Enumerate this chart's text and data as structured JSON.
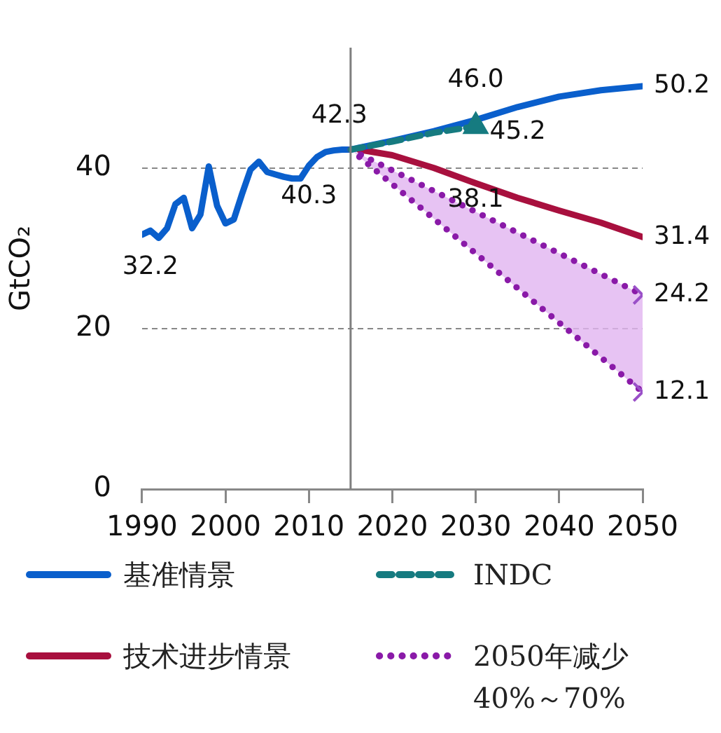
{
  "chart_data": {
    "type": "line",
    "ylabel": "GtCO₂",
    "xlim": [
      1990,
      2050
    ],
    "xticks": [
      1990,
      2000,
      2010,
      2020,
      2030,
      2040,
      2050
    ],
    "ylim": [
      0,
      55
    ],
    "yticks": [
      0,
      20,
      40
    ],
    "grid": "y",
    "legend": "bottom",
    "series": [
      {
        "name": "基准情景",
        "color": "#0a5fcc",
        "line_style": "solid",
        "x": [
          1990,
          1991,
          1992,
          1993,
          1994,
          1995,
          1996,
          1997,
          1998,
          1999,
          2000,
          2001,
          2002,
          2003,
          2004,
          2005,
          2006,
          2007,
          2008,
          2009,
          2010,
          2011,
          2012,
          2013,
          2014,
          2015,
          2020,
          2025,
          2030,
          2035,
          2040,
          2045,
          2050
        ],
        "values": [
          31.7,
          32.2,
          31.3,
          32.5,
          35.5,
          36.3,
          32.5,
          34.2,
          40.2,
          35.3,
          33.1,
          33.6,
          36.8,
          39.8,
          40.8,
          39.5,
          39.2,
          38.9,
          38.7,
          38.7,
          40.3,
          41.4,
          42.0,
          42.2,
          42.3,
          42.3,
          43.4,
          44.6,
          46.0,
          47.6,
          48.9,
          49.7,
          50.2
        ]
      },
      {
        "name": "INDC",
        "color": "#167b80",
        "line_style": "dashed",
        "x": [
          2015,
          2020,
          2025,
          2030
        ],
        "values": [
          42.3,
          43.3,
          44.4,
          45.2
        ]
      },
      {
        "name": "技术进步情景",
        "color": "#a8103e",
        "line_style": "solid",
        "x": [
          2016,
          2020,
          2025,
          2030,
          2035,
          2040,
          2045,
          2050
        ],
        "values": [
          42.3,
          41.6,
          40.0,
          38.1,
          36.3,
          34.7,
          33.2,
          31.4
        ]
      },
      {
        "name": "2050年减少40%～70%",
        "color": "#8a1aa8",
        "line_style": "dotted",
        "x": [
          2015,
          2050
        ],
        "values": [
          42.3,
          24.2
        ],
        "lower": [
          42.3,
          12.1
        ],
        "upper": [
          42.3,
          24.2
        ]
      },
      {
        "color": "#8a1aa8",
        "line_style": "dotted",
        "x": [
          2015,
          2050
        ],
        "values": [
          42.3,
          12.1
        ]
      },
      {
        "type": "scatter",
        "marker": "triangle",
        "color": "#167b80",
        "x": [
          2030
        ],
        "values": [
          45.2
        ]
      },
      {
        "type": "scatter",
        "marker": "cross",
        "color": "#9a50c8",
        "x": [
          2050,
          2050
        ],
        "values": [
          24.2,
          12.1
        ]
      }
    ],
    "ref_lines": [
      {
        "axis": "x",
        "value": 2015,
        "color": "#7f7f7f"
      }
    ],
    "annotations": [
      {
        "text": "32.2",
        "x": 1991,
        "y": 32.2
      },
      {
        "text": "40.3",
        "x": 2010,
        "y": 40.3
      },
      {
        "text": "42.3",
        "x": 2015,
        "y": 42.3
      },
      {
        "text": "46.0",
        "x": 2030,
        "y": 46.0
      },
      {
        "text": "45.2",
        "x": 2030,
        "y": 45.2
      },
      {
        "text": "38.1",
        "x": 2030,
        "y": 38.1
      },
      {
        "text": "50.2",
        "x": 2050,
        "y": 50.2
      },
      {
        "text": "31.4",
        "x": 2050,
        "y": 31.4
      },
      {
        "text": "24.2",
        "x": 2050,
        "y": 24.2
      },
      {
        "text": "12.1",
        "x": 2050,
        "y": 12.1
      }
    ]
  }
}
